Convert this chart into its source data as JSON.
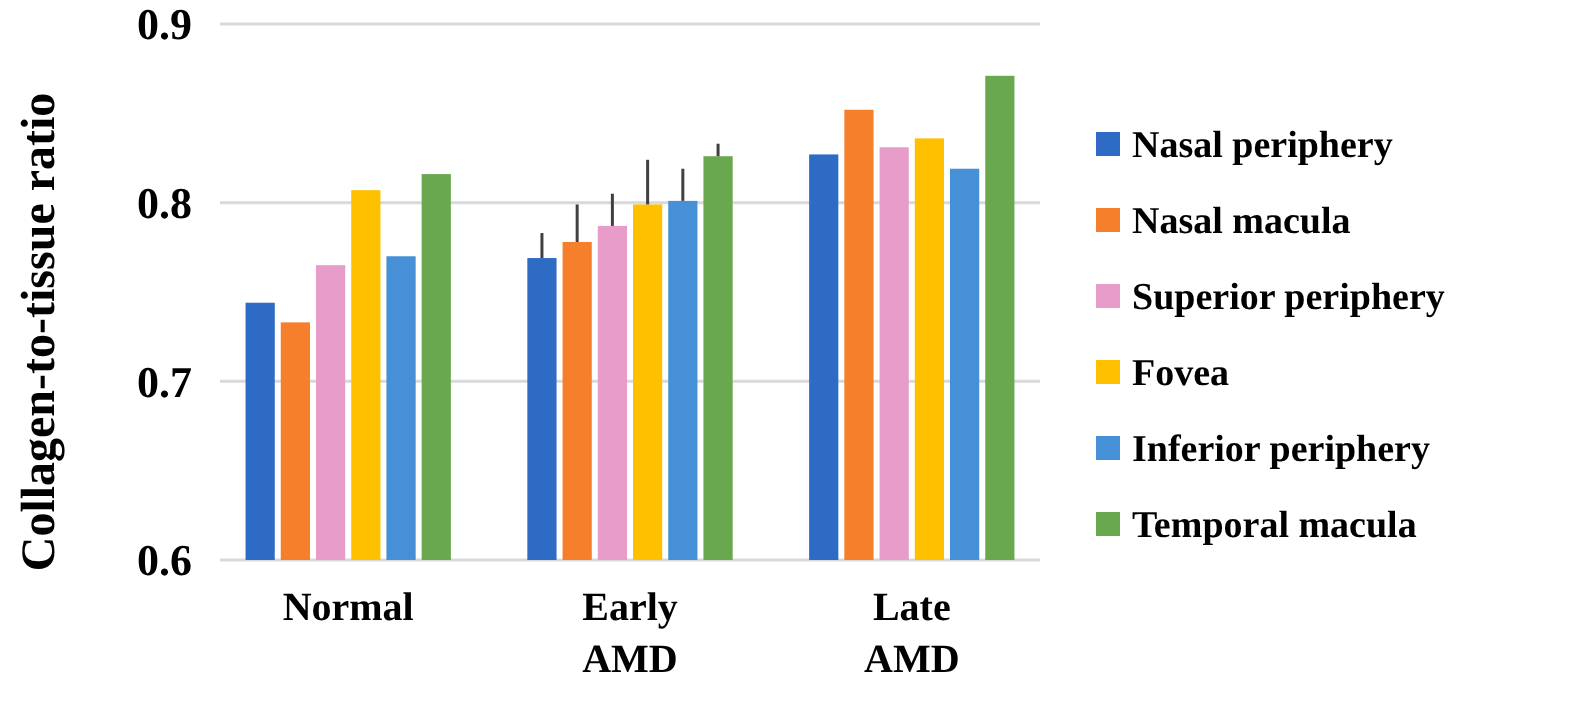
{
  "chart_data": {
    "type": "bar",
    "ylabel": "Collagen-to-tissue ratio",
    "categories": [
      "Normal",
      "Early AMD",
      "Late AMD"
    ],
    "series": [
      {
        "name": "Nasal periphery",
        "color": "#2e6bc4",
        "values": [
          0.744,
          0.769,
          0.827
        ],
        "errors": [
          null,
          [
            0.769,
            0.783
          ],
          null
        ]
      },
      {
        "name": "Nasal macula",
        "color": "#f57f2a",
        "values": [
          0.733,
          0.778,
          0.852
        ],
        "errors": [
          null,
          [
            0.778,
            0.799
          ],
          null
        ]
      },
      {
        "name": "Superior periphery",
        "color": "#e79cc9",
        "values": [
          0.765,
          0.787,
          0.831
        ],
        "errors": [
          null,
          [
            0.787,
            0.805
          ],
          null
        ]
      },
      {
        "name": "Fovea",
        "color": "#ffc000",
        "values": [
          0.807,
          0.799,
          0.836
        ],
        "errors": [
          null,
          [
            0.799,
            0.824
          ],
          null
        ]
      },
      {
        "name": "Inferior periphery",
        "color": "#4590d6",
        "values": [
          0.77,
          0.801,
          0.819
        ],
        "errors": [
          null,
          [
            0.801,
            0.819
          ],
          null
        ]
      },
      {
        "name": "Temporal macula",
        "color": "#6aa84f",
        "values": [
          0.816,
          0.826,
          0.871
        ],
        "errors": [
          null,
          [
            0.826,
            0.833
          ],
          null
        ]
      }
    ],
    "ylim": [
      0.6,
      0.9
    ],
    "yticks": [
      0.6,
      0.7,
      0.8,
      0.9
    ],
    "grid": "y",
    "legend": "right"
  }
}
